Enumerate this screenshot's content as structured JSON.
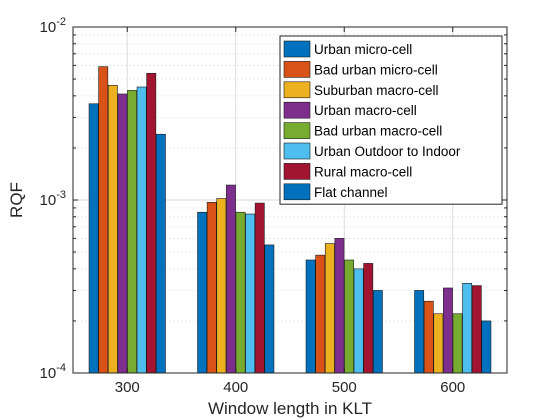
{
  "chart_data": {
    "type": "bar",
    "title": "",
    "xlabel": "Window length in KLT",
    "ylabel": "RQF",
    "yscale": "log",
    "ylim": [
      0.0001,
      0.01
    ],
    "y_ticks": [
      {
        "value": 0.0001,
        "base": "10",
        "exp": "-4"
      },
      {
        "value": 0.001,
        "base": "10",
        "exp": "-3"
      },
      {
        "value": 0.01,
        "base": "10",
        "exp": "-2"
      }
    ],
    "grid": true,
    "legend_position": "top-right",
    "categories": [
      "300",
      "400",
      "500",
      "600"
    ],
    "series": [
      {
        "name": "Urban micro-cell",
        "color": "#0072BD",
        "values": [
          0.0036,
          0.00085,
          0.00045,
          0.0003
        ]
      },
      {
        "name": "Bad urban micro-cell",
        "color": "#D95319",
        "values": [
          0.0059,
          0.00097,
          0.00048,
          0.00026
        ]
      },
      {
        "name": "Suburban macro-cell",
        "color": "#EDB120",
        "values": [
          0.0046,
          0.00102,
          0.00056,
          0.00022
        ]
      },
      {
        "name": "Urban macro-cell",
        "color": "#7E2F8E",
        "values": [
          0.0041,
          0.00122,
          0.0006,
          0.00031
        ]
      },
      {
        "name": "Bad urban macro-cell",
        "color": "#77AC30",
        "values": [
          0.0043,
          0.00085,
          0.00045,
          0.00022
        ]
      },
      {
        "name": "Urban Outdoor to Indoor",
        "color": "#4DBEEE",
        "values": [
          0.0045,
          0.00083,
          0.0004,
          0.00033
        ]
      },
      {
        "name": "Rural macro-cell",
        "color": "#A2142F",
        "values": [
          0.0054,
          0.00096,
          0.00043,
          0.00032
        ]
      },
      {
        "name": "Flat channel",
        "color": "#0072BD",
        "values": [
          0.0024,
          0.00055,
          0.0003,
          0.0002
        ]
      }
    ]
  }
}
